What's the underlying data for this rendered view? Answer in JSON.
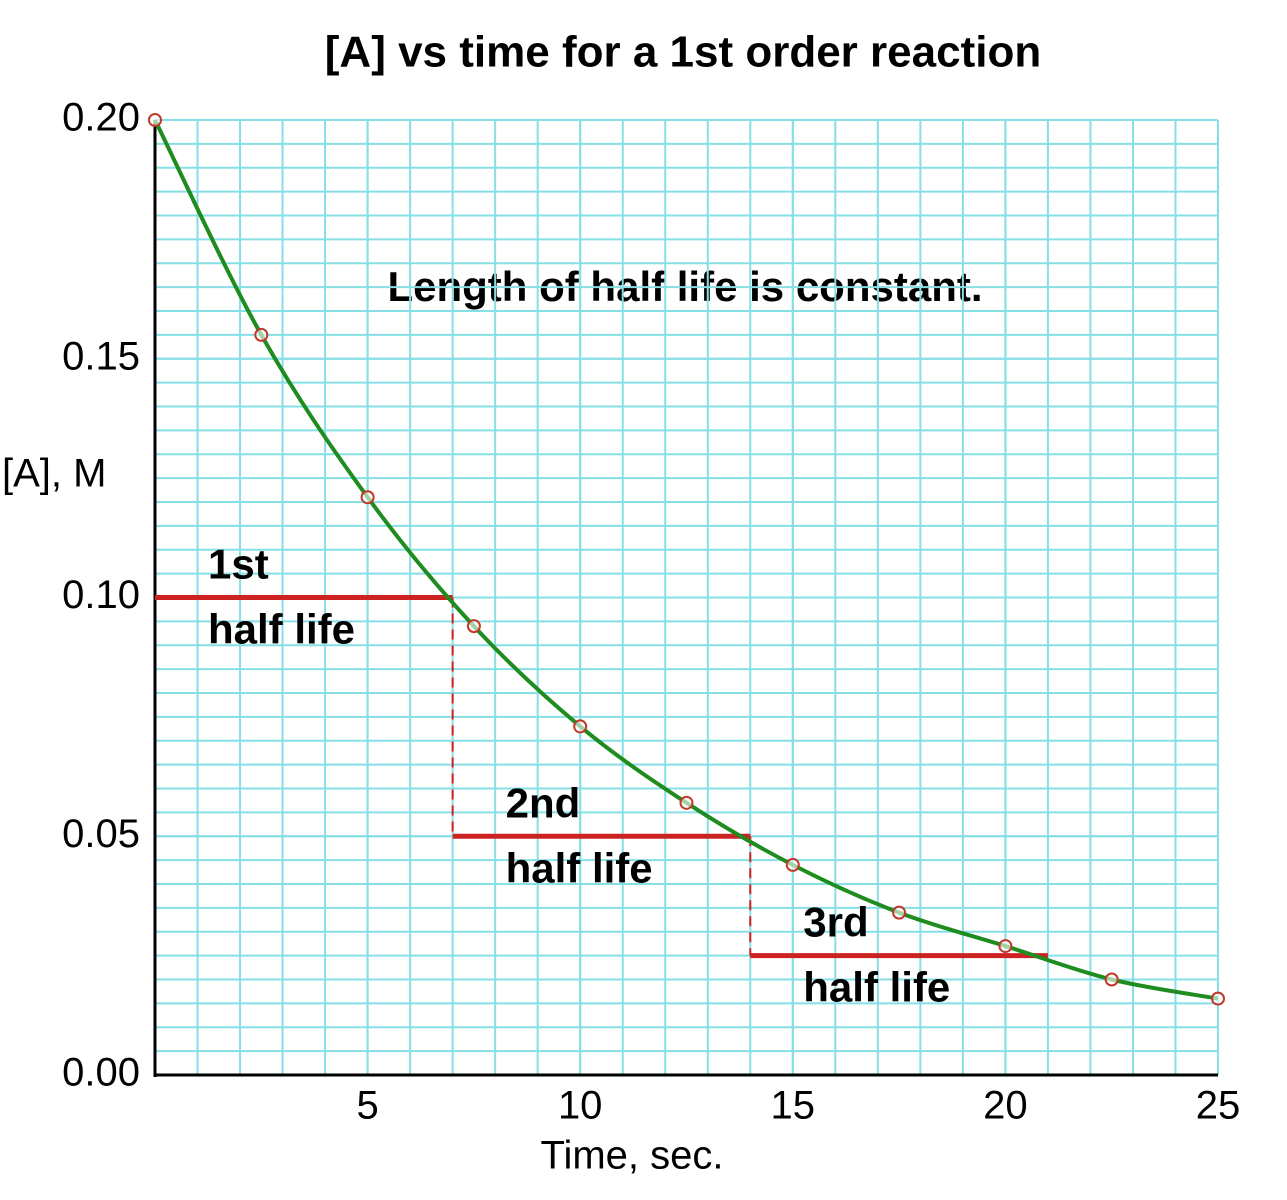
{
  "chart_data": {
    "type": "line",
    "title": "[A] vs time for a 1st order reaction",
    "xlabel": "Time, sec.",
    "ylabel": "[A], M",
    "annotation": "Length of half life is constant.",
    "x": [
      0,
      2.5,
      5,
      7.5,
      10,
      12.5,
      15,
      17.5,
      20,
      22.5,
      25
    ],
    "series": [
      {
        "name": "[A]",
        "color": "#1e8c1e",
        "marker_color": "#c0392b",
        "values": [
          0.2,
          0.155,
          0.121,
          0.094,
          0.073,
          0.057,
          0.044,
          0.034,
          0.027,
          0.02,
          0.016
        ]
      }
    ],
    "xlim": [
      0,
      25
    ],
    "xticks": [
      5,
      10,
      15,
      20,
      25
    ],
    "ylim": [
      0,
      0.2
    ],
    "yticks": [
      {
        "value": 0,
        "label": "0.00"
      },
      {
        "value": 0.05,
        "label": "0.05"
      },
      {
        "value": 0.1,
        "label": "0.10"
      },
      {
        "value": 0.15,
        "label": "0.15"
      },
      {
        "value": 0.2,
        "label": "0.20"
      }
    ],
    "grid": true,
    "grid_color": "#86dfe6",
    "half_lives": [
      {
        "start": 0,
        "end": 7,
        "value": 0.1,
        "text": [
          "1st",
          "half life"
        ],
        "color": "#cc2222"
      },
      {
        "start": 7,
        "end": 14,
        "value": 0.05,
        "text": [
          "2nd",
          "half life"
        ],
        "color": "#cc2222"
      },
      {
        "start": 14,
        "end": 21,
        "value": 0.025,
        "text": [
          "3rd",
          "half life"
        ],
        "color": "#cc2222"
      }
    ]
  }
}
